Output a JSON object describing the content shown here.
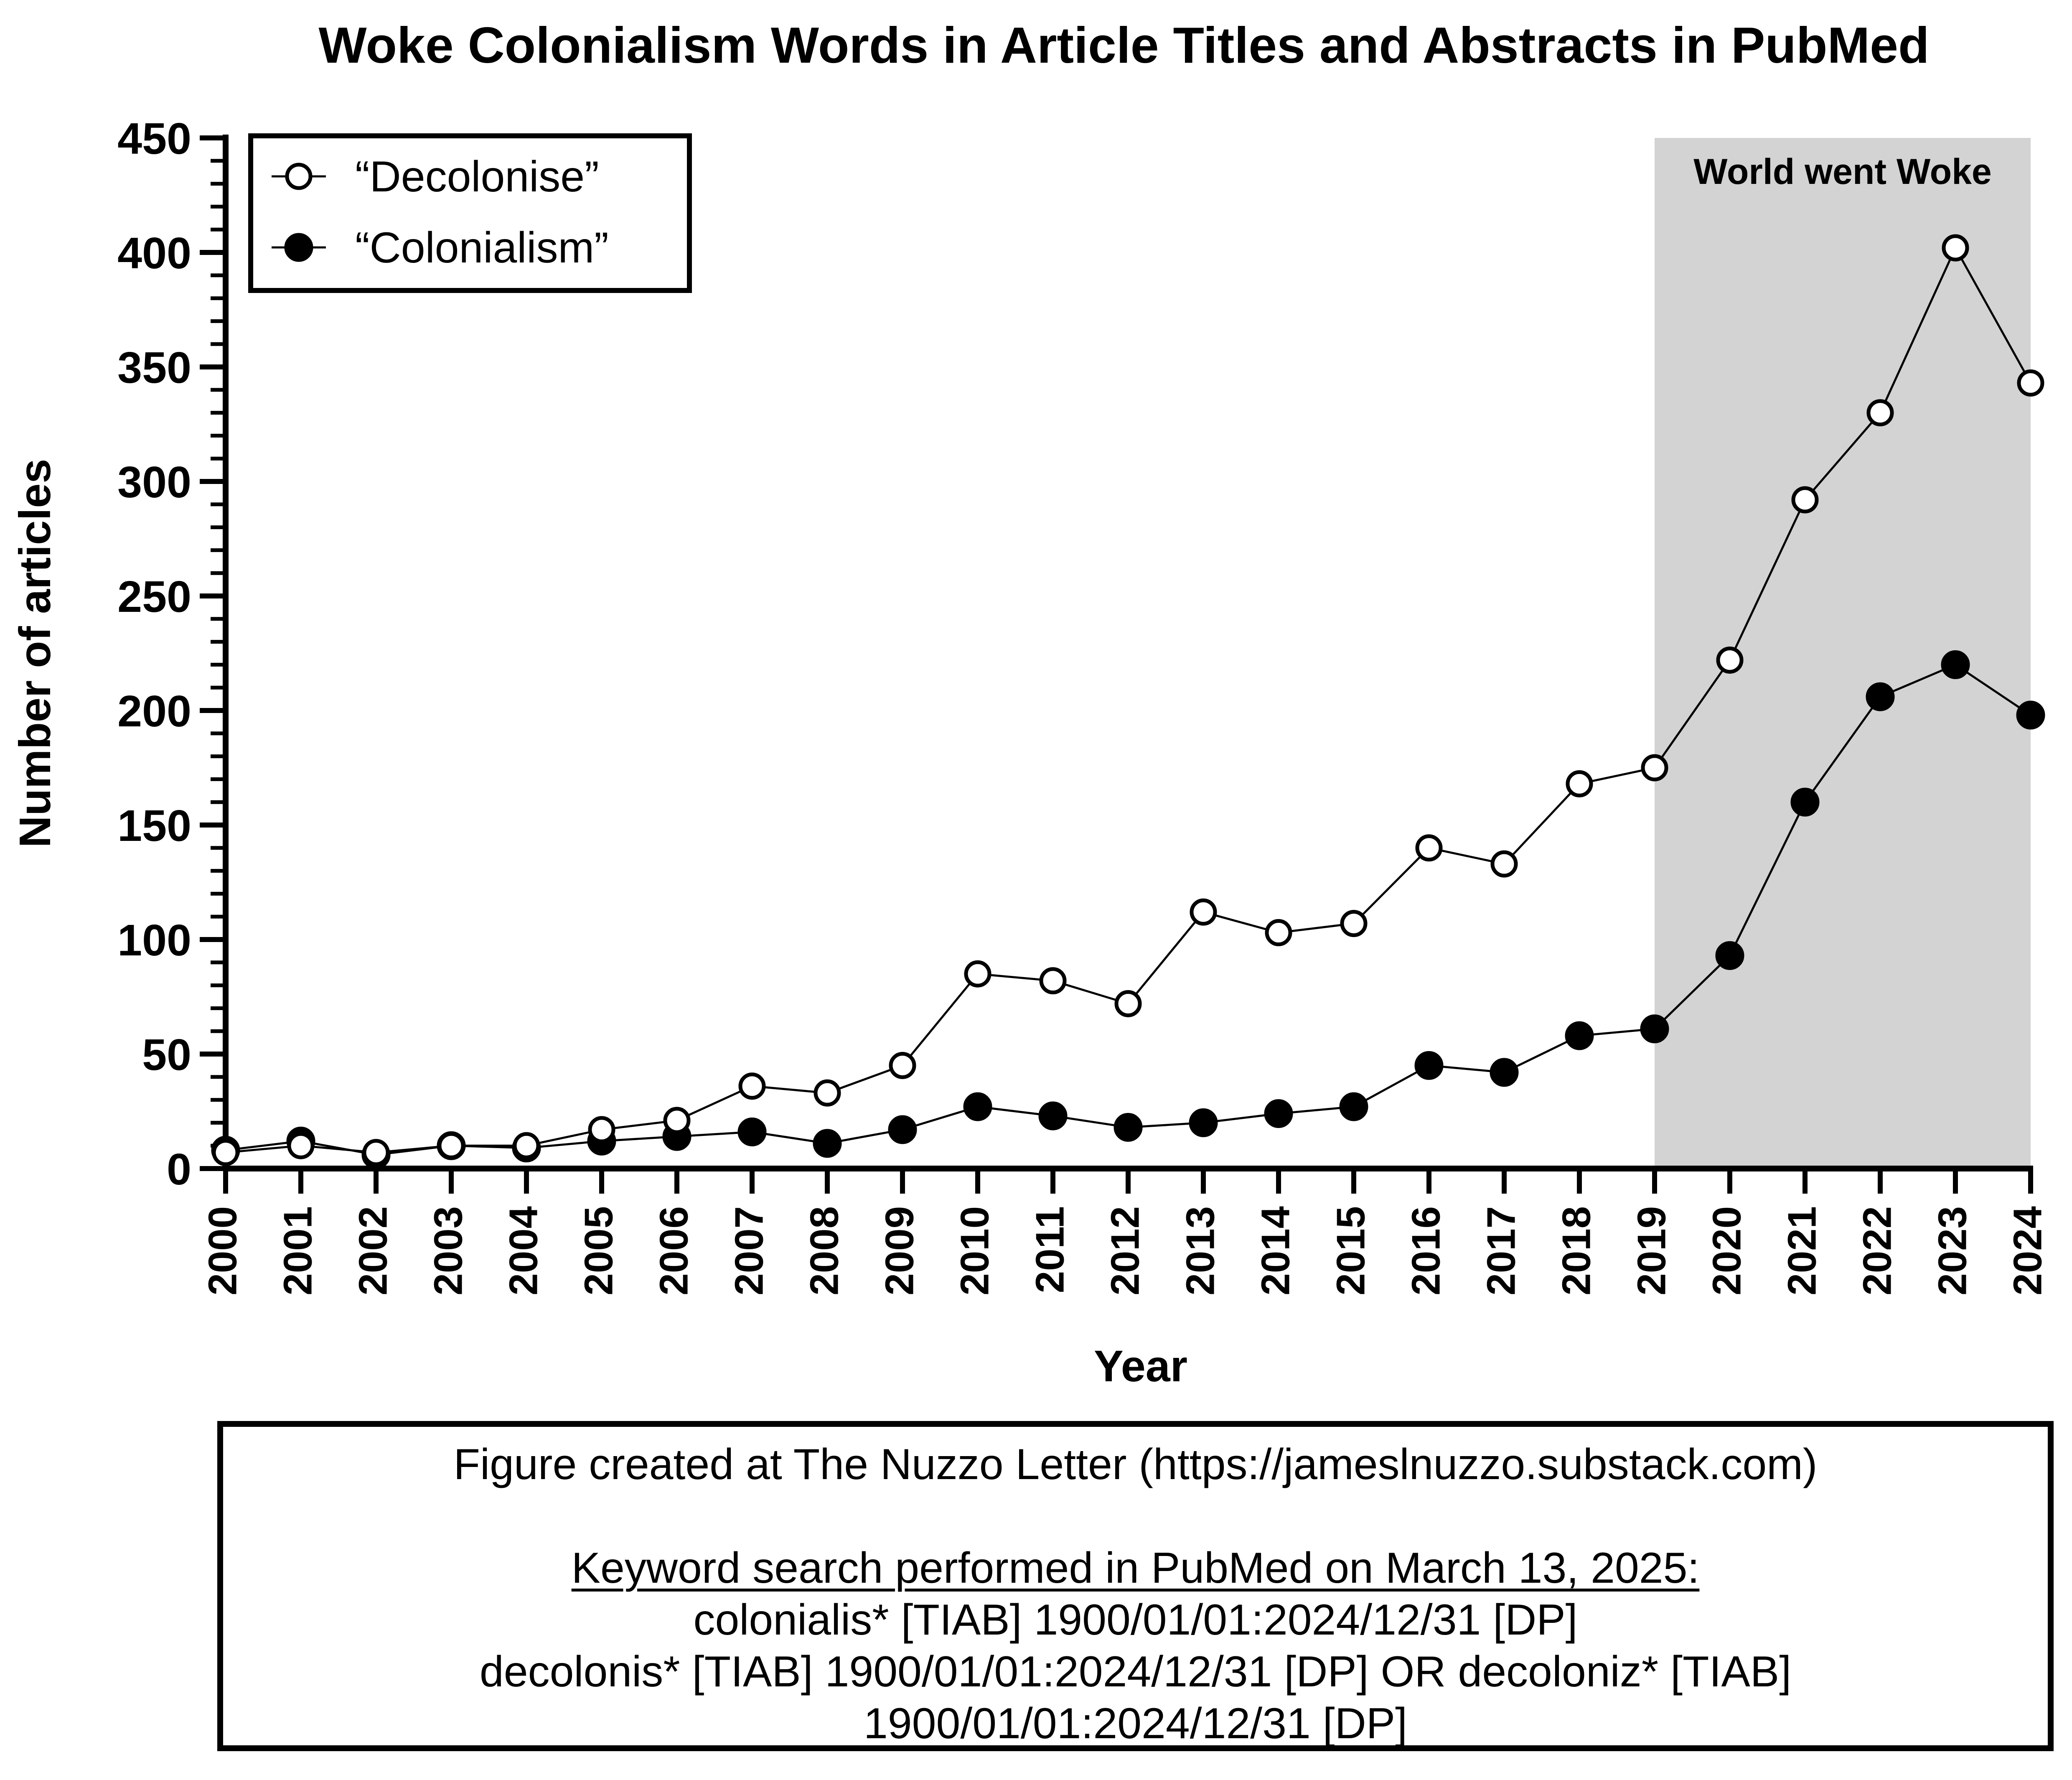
{
  "chart_data": {
    "type": "line",
    "title": "Woke Colonialism Words in Article Titles and Abstracts in PubMed",
    "xlabel": "Year",
    "ylabel": "Number of articles",
    "ylim": [
      0,
      450
    ],
    "yticks": [
      "0",
      "50",
      "100",
      "150",
      "200",
      "250",
      "300",
      "350",
      "400",
      "450"
    ],
    "x": [
      "2000",
      "2001",
      "2002",
      "2003",
      "2004",
      "2005",
      "2006",
      "2007",
      "2008",
      "2009",
      "2010",
      "2011",
      "2012",
      "2013",
      "2014",
      "2015",
      "2016",
      "2017",
      "2018",
      "2019",
      "2020",
      "2021",
      "2022",
      "2023",
      "2024"
    ],
    "series": [
      {
        "name": "“Decolonise”",
        "marker": "open-circle",
        "values": [
          7,
          10,
          7,
          10,
          10,
          17,
          21,
          36,
          33,
          45,
          85,
          82,
          72,
          112,
          103,
          107,
          140,
          133,
          168,
          175,
          222,
          292,
          330,
          402,
          343
        ]
      },
      {
        "name": "“Colonialism”",
        "marker": "filled-circle",
        "values": [
          8,
          12,
          6,
          10,
          9,
          12,
          14,
          16,
          11,
          17,
          27,
          23,
          18,
          20,
          24,
          27,
          45,
          42,
          58,
          61,
          93,
          160,
          206,
          220,
          198
        ]
      }
    ],
    "shaded_region": {
      "x_from": "2019",
      "x_to": "2024",
      "label": "World went Woke",
      "color": "#d3d3d3"
    },
    "legend_position": "top-left",
    "grid": false
  },
  "caption": {
    "credit": "Figure created at The Nuzzo Letter (https://jameslnuzzo.substack.com)",
    "search_heading": "Keyword search performed in PubMed on March 13, 2025:",
    "query_lines": [
      "colonialis* [TIAB] 1900/01/01:2024/12/31 [DP]",
      "decolonis* [TIAB] 1900/01/01:2024/12/31 [DP] OR decoloniz* [TIAB]",
      "1900/01/01:2024/12/31 [DP]"
    ]
  }
}
